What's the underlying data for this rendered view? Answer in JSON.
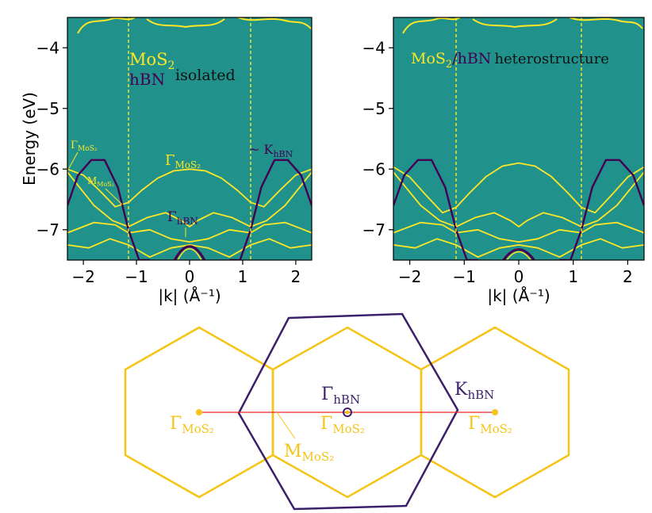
{
  "chart_data": [
    {
      "type": "line",
      "subtype": "band-structure",
      "panel": "left",
      "xlabel": "|k| (Å⁻¹)",
      "ylabel": "Energy (eV)",
      "xlim": [
        -2.3,
        2.3
      ],
      "ylim": [
        -7.5,
        -3.5
      ],
      "x_ticks": [
        -2,
        -1,
        0,
        1,
        2
      ],
      "y_ticks": [
        -4,
        -5,
        -6,
        -7
      ],
      "x_tick_labels": [
        "−2",
        "−1",
        "0",
        "1",
        "2"
      ],
      "y_tick_labels": [
        "−4",
        "−5",
        "−6",
        "−7"
      ],
      "dashed_vlines_x": [
        -1.15,
        1.15
      ],
      "colors": {
        "background": "#21918c",
        "mos2": "#fde725",
        "hbn": "#440154"
      },
      "legend": {
        "mos2": "MoS",
        "mos2_sub": "2",
        "hbn": "hBN",
        "tag": "isolated"
      },
      "annotations": {
        "gamma_mos2_left": {
          "sym": "Γ",
          "sub": "MoS₂"
        },
        "m_mos2": {
          "sym": "M",
          "sub": "MoS₂"
        },
        "gamma_mos2_center": {
          "sym": "Γ",
          "sub": "MoS₂"
        },
        "gamma_hbn": {
          "sym": "Γ",
          "sub": "hBN"
        },
        "k_hbn": {
          "prefix": "~ K",
          "sub": "hBN"
        }
      },
      "series": [
        {
          "x": [
            -2.3,
            -2.0,
            -1.7,
            -1.4,
            -1.15,
            -0.9,
            -0.6,
            -0.3,
            0,
            0.3,
            0.6,
            0.9,
            1.15,
            1.4,
            1.7,
            2.0,
            2.3
          ],
          "y": [
            -6.0,
            -6.1,
            -6.35,
            -6.62,
            -6.55,
            -6.35,
            -6.15,
            -6.03,
            -6.0,
            -6.03,
            -6.15,
            -6.35,
            -6.55,
            -6.62,
            -6.35,
            -6.1,
            -6.0
          ]
        },
        {
          "x": [
            -2.3,
            -1.8,
            -1.45,
            -1.15,
            -0.8,
            -0.45,
            -0.15,
            0,
            0.15,
            0.45,
            0.8,
            1.15,
            1.45,
            1.8,
            2.3
          ],
          "y": [
            -6.05,
            -6.6,
            -6.85,
            -6.95,
            -6.8,
            -6.72,
            -6.85,
            -6.95,
            -6.85,
            -6.72,
            -6.8,
            -6.95,
            -6.85,
            -6.6,
            -6.05
          ]
        },
        {
          "x": [
            -2.3,
            -1.8,
            -1.4,
            -1.15,
            -0.75,
            -0.35,
            0,
            0.35,
            0.75,
            1.15,
            1.4,
            1.8,
            2.3
          ],
          "y": [
            -7.05,
            -6.88,
            -6.92,
            -7.05,
            -7.0,
            -7.15,
            -7.2,
            -7.15,
            -7.0,
            -7.05,
            -6.92,
            -6.88,
            -7.05
          ]
        },
        {
          "x": [
            -2.3,
            -1.9,
            -1.5,
            -1.15,
            -0.75,
            -0.35,
            0,
            0.35,
            0.75,
            1.15,
            1.5,
            1.9,
            2.3
          ],
          "y": [
            -7.25,
            -7.3,
            -7.15,
            -7.25,
            -7.45,
            -7.3,
            -7.25,
            -7.3,
            -7.45,
            -7.25,
            -7.15,
            -7.3,
            -7.25
          ]
        },
        {
          "x": [
            -2.3,
            -2.1,
            -1.85,
            -1.6,
            -1.35,
            -1.15,
            -0.95,
            -0.75
          ],
          "y": [
            -6.6,
            -6.1,
            -5.85,
            -5.85,
            -6.3,
            -7.0,
            -7.5,
            -7.5
          ]
        },
        {
          "x": [
            0.75,
            0.95,
            1.15,
            1.35,
            1.6,
            1.85,
            2.1,
            2.3
          ],
          "y": [
            -7.5,
            -7.5,
            -7.0,
            -6.3,
            -5.85,
            -5.85,
            -6.1,
            -6.6
          ]
        }
      ]
    },
    {
      "type": "line",
      "subtype": "band-structure",
      "panel": "right",
      "xlabel": "|k| (Å⁻¹)",
      "ylabel": "",
      "xlim": [
        -2.3,
        2.3
      ],
      "ylim": [
        -7.5,
        -3.5
      ],
      "x_ticks": [
        -2,
        -1,
        0,
        1,
        2
      ],
      "y_ticks": [
        -4,
        -5,
        -6,
        -7
      ],
      "x_tick_labels": [
        "−2",
        "−1",
        "0",
        "1",
        "2"
      ],
      "y_tick_labels": [
        "−4",
        "−5",
        "−6",
        "−7"
      ],
      "dashed_vlines_x": [
        -1.15,
        1.15
      ],
      "legend": {
        "mos2": "MoS",
        "mos2_sub": "2",
        "slash": "/",
        "hbn": "hBN",
        "tag": "heterostructure"
      }
    },
    {
      "type": "diagram",
      "subtype": "brillouin-zones",
      "labels": {
        "gamma_mos2": {
          "sym": "Γ",
          "sub": "MoS₂"
        },
        "gamma_hbn": {
          "sym": "Γ",
          "sub": "hBN"
        },
        "k_hbn": {
          "sym": "K",
          "sub": "hBN"
        },
        "m_mos2": {
          "sym": "M",
          "sub": "MoS₂"
        }
      },
      "colors": {
        "mos2": "#f6c416",
        "hbn": "#3b1f6b",
        "path": "#e8262b"
      }
    }
  ]
}
